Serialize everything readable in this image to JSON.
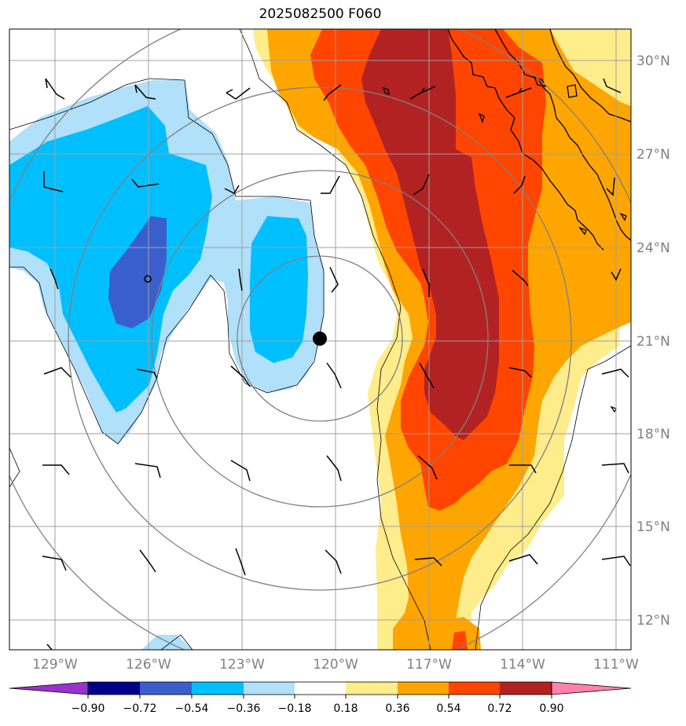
{
  "title": "2025082500 F060",
  "latitude_labels": [
    "30°N",
    "27°N",
    "24°N",
    "21°N",
    "18°N",
    "15°N",
    "12°N"
  ],
  "longitude_labels": [
    "129°W",
    "126°W",
    "123°W",
    "120°W",
    "117°W",
    "114°W",
    "111°W"
  ],
  "colorbar": {
    "tick_labels": [
      "−0.90",
      "−0.72",
      "−0.54",
      "−0.36",
      "−0.18",
      "0.18",
      "0.36",
      "0.54",
      "0.72",
      "0.90"
    ],
    "colors": [
      "#9932cc",
      "#00008b",
      "#3a5fcd",
      "#00bfff",
      "#b0e0fa",
      "#ffffff",
      "#ffec8b",
      "#ffa500",
      "#ff4500",
      "#b22222",
      "#ff82ab"
    ],
    "extend": "both"
  },
  "colors": {
    "coastline": "#000000",
    "gridline": "#a0a0a0",
    "range_rings": "#808080",
    "center_marker": "#000000"
  },
  "markers": {
    "center": {
      "lon": -120.4,
      "lat": 21.0
    },
    "secondary": {
      "lon": -126.0,
      "lat": 23.0
    }
  },
  "icons": [
    "wind-barb-icon",
    "center-dot-icon",
    "open-circle-icon"
  ]
}
